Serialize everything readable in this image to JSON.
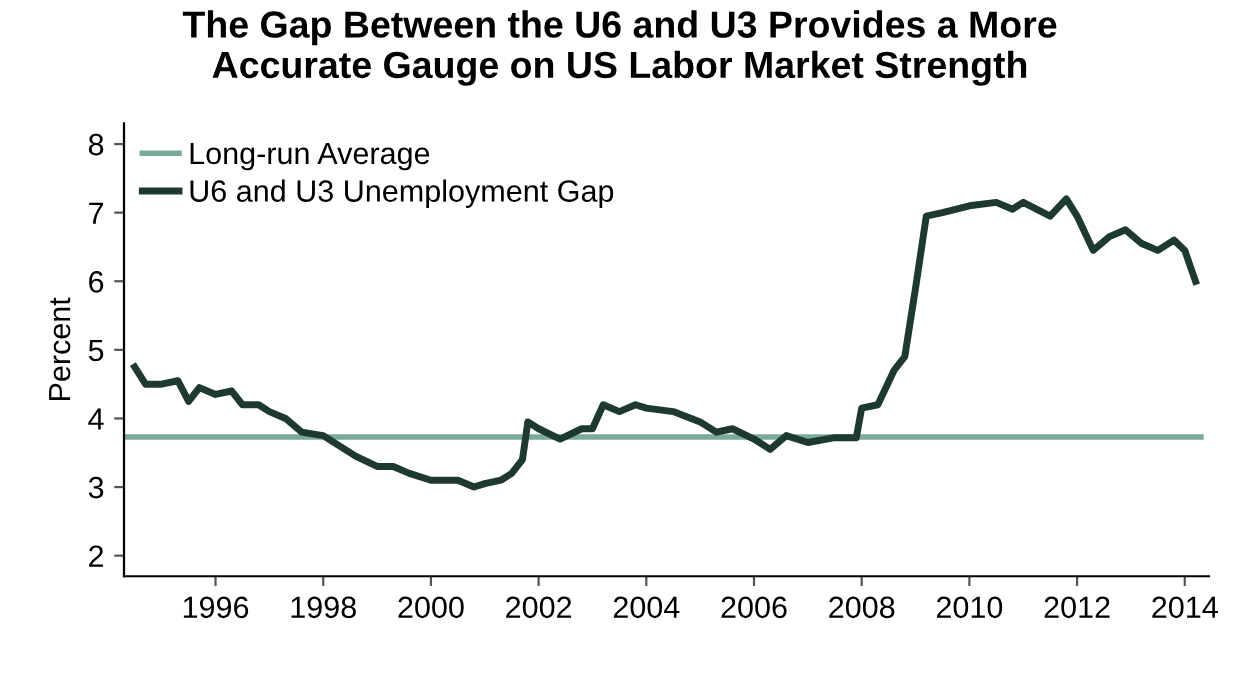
{
  "chart_data": {
    "type": "line",
    "title": "The Gap Between the U6 and U3 Provides a More\nAccurate Gauge on US Labor Market Strength",
    "ylabel": "Percent",
    "xlim": [
      1994.3,
      2014.45
    ],
    "xticks": [
      1996,
      1998,
      2000,
      2002,
      2004,
      2006,
      2008,
      2010,
      2012,
      2014
    ],
    "ylim": [
      1.7,
      8.3
    ],
    "yticks": [
      2,
      3,
      4,
      5,
      6,
      7,
      8
    ],
    "legend": "top left",
    "series": [
      {
        "name": "Long-run Average",
        "color": "#7aab98",
        "x": [
          1994.3,
          2014.3
        ],
        "values": [
          3.73,
          3.73
        ]
      },
      {
        "name": "U6 and U3 Unemployment Gap",
        "color": "#1e3a2f",
        "x": [
          1994.5,
          1994.7,
          1995.0,
          1995.3,
          1995.5,
          1995.7,
          1996.0,
          1996.3,
          1996.5,
          1996.8,
          1997.0,
          1997.3,
          1997.6,
          1998.0,
          1998.3,
          1998.6,
          1999.0,
          1999.3,
          1999.6,
          2000.0,
          2000.5,
          2000.8,
          2001.0,
          2001.3,
          2001.5,
          2001.7,
          2001.8,
          2002.0,
          2002.4,
          2002.8,
          2003.0,
          2003.2,
          2003.5,
          2003.8,
          2004.0,
          2004.5,
          2005.0,
          2005.3,
          2005.6,
          2006.0,
          2006.3,
          2006.6,
          2007.0,
          2007.5,
          2007.9,
          2008.0,
          2008.3,
          2008.6,
          2008.8,
          2009.0,
          2009.2,
          2009.5,
          2010.0,
          2010.5,
          2010.8,
          2011.0,
          2011.5,
          2011.8,
          2012.0,
          2012.3,
          2012.6,
          2012.9,
          2013.2,
          2013.5,
          2013.8,
          2014.0,
          2014.2
        ],
        "values": [
          4.75,
          4.5,
          4.5,
          4.55,
          4.25,
          4.45,
          4.35,
          4.4,
          4.2,
          4.2,
          4.1,
          4.0,
          3.8,
          3.75,
          3.6,
          3.45,
          3.3,
          3.3,
          3.2,
          3.1,
          3.1,
          3.0,
          3.05,
          3.1,
          3.2,
          3.4,
          3.95,
          3.85,
          3.7,
          3.85,
          3.85,
          4.2,
          4.1,
          4.2,
          4.15,
          4.1,
          3.95,
          3.8,
          3.85,
          3.7,
          3.55,
          3.75,
          3.65,
          3.72,
          3.72,
          4.15,
          4.2,
          4.7,
          4.9,
          5.9,
          6.95,
          7.0,
          7.1,
          7.15,
          7.05,
          7.15,
          6.95,
          7.2,
          6.95,
          6.45,
          6.65,
          6.75,
          6.55,
          6.45,
          6.6,
          6.45,
          6.0
        ]
      }
    ]
  }
}
